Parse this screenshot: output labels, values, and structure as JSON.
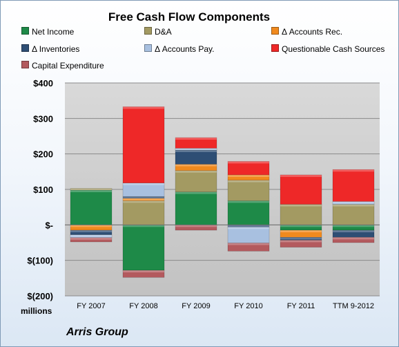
{
  "chart_data": {
    "type": "bar",
    "stacked": true,
    "title": "Free Cash Flow Components",
    "categories": [
      "FY 2007",
      "FY 2008",
      "FY 2009",
      "FY 2010",
      "FY 2011",
      "TTM 9-2012"
    ],
    "y_tick_labels": [
      "$400",
      "$300",
      "$200",
      "$100",
      "$-",
      "$(100)",
      "$(200)"
    ],
    "y_tick_values": [
      400,
      300,
      200,
      100,
      0,
      -100,
      -200
    ],
    "ylim": [
      -200,
      400
    ],
    "grid": true,
    "legend_position": "top",
    "units_label": "millions",
    "company": "Arris Group",
    "series": [
      {
        "name": "Net Income",
        "color": "#1e8a48",
        "values": [
          98,
          -128,
          93,
          68,
          -15,
          -15
        ]
      },
      {
        "name": "D&A",
        "color": "#a39a62",
        "values": [
          5,
          68,
          60,
          58,
          58,
          58
        ]
      },
      {
        "name": "Δ Accounts Rec.",
        "color": "#f08a1e",
        "values": [
          -15,
          7,
          18,
          15,
          -20,
          0
        ]
      },
      {
        "name": "Δ Inventories",
        "color": "#2e4e74",
        "values": [
          -13,
          5,
          40,
          -6,
          -8,
          -20
        ]
      },
      {
        "name": "Δ Accounts Pay.",
        "color": "#a8c0e0",
        "values": [
          -8,
          38,
          5,
          -45,
          0,
          8
        ]
      },
      {
        "name": "Questionable Cash Sources",
        "color": "#ee2828",
        "values": [
          0,
          215,
          30,
          38,
          83,
          90
        ]
      },
      {
        "name": "Capital Expenditure",
        "color": "#b35a5e",
        "values": [
          -12,
          -20,
          -15,
          -23,
          -20,
          -15
        ]
      }
    ]
  }
}
